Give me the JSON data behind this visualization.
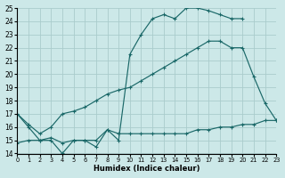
{
  "background_color": "#cce8e8",
  "grid_color": "#aacccc",
  "line_color": "#1a6868",
  "xlabel": "Humidex (Indice chaleur)",
  "xlim": [
    0,
    23
  ],
  "ylim": [
    14,
    25
  ],
  "xticks": [
    0,
    1,
    2,
    3,
    4,
    5,
    6,
    7,
    8,
    9,
    10,
    11,
    12,
    13,
    14,
    15,
    16,
    17,
    18,
    19,
    20,
    21,
    22,
    23
  ],
  "yticks": [
    14,
    15,
    16,
    17,
    18,
    19,
    20,
    21,
    22,
    23,
    24,
    25
  ],
  "curve1_x": [
    0,
    1,
    2,
    3,
    4,
    5,
    6,
    7,
    8,
    9,
    10,
    11,
    12,
    13,
    14,
    15,
    16,
    17,
    18,
    19,
    20
  ],
  "curve1_y": [
    17,
    16,
    15,
    15,
    14,
    15,
    15,
    15,
    15.8,
    15,
    21.5,
    23.0,
    24.2,
    24.5,
    24.2,
    25.0,
    25.0,
    24.8,
    24.5,
    24.2,
    24.2
  ],
  "curve2_x": [
    0,
    1,
    2,
    3,
    4,
    5,
    6,
    7,
    8,
    9,
    10,
    11,
    12,
    13,
    14,
    15,
    16,
    17,
    18,
    19,
    20,
    21,
    22,
    23
  ],
  "curve2_y": [
    17.0,
    16.2,
    15.5,
    16.0,
    17.0,
    17.2,
    17.5,
    18.0,
    18.5,
    18.8,
    19.0,
    19.5,
    20.0,
    20.5,
    21.0,
    21.5,
    22.0,
    22.5,
    22.5,
    22.0,
    22.0,
    19.8,
    17.8,
    16.5
  ],
  "curve3_x": [
    0,
    1,
    2,
    3,
    4,
    5,
    6,
    7,
    8,
    9,
    10,
    11,
    12,
    13,
    14,
    15,
    16,
    17,
    18,
    19,
    20,
    21,
    22,
    23
  ],
  "curve3_y": [
    14.8,
    15.0,
    15.0,
    15.2,
    14.8,
    15.0,
    15.0,
    14.5,
    15.8,
    15.5,
    15.5,
    15.5,
    15.5,
    15.5,
    15.5,
    15.5,
    15.8,
    15.8,
    16.0,
    16.0,
    16.2,
    16.2,
    16.5,
    16.5
  ]
}
